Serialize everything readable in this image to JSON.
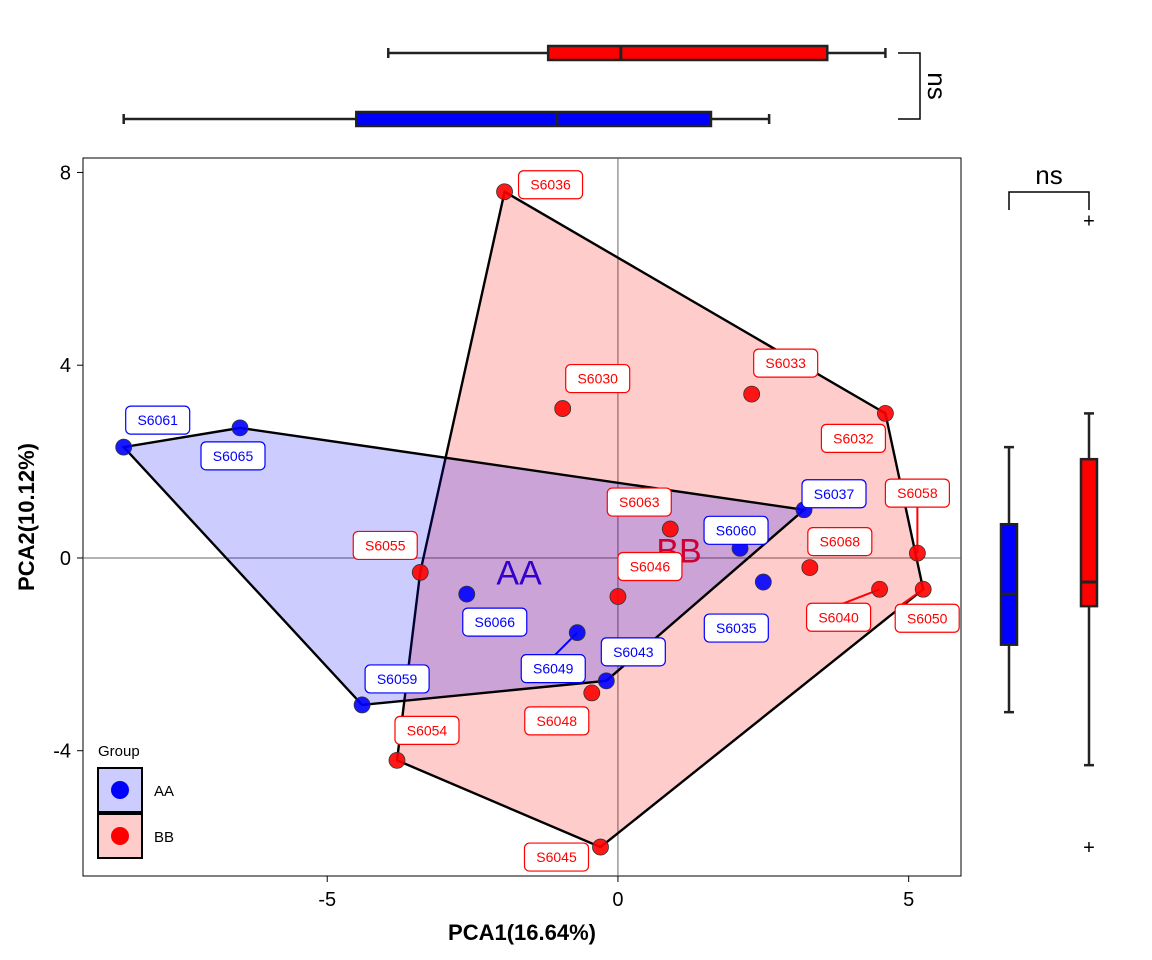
{
  "chart_data": {
    "type": "scatter",
    "xlabel": "PCA1(16.64%)",
    "ylabel": "PCA2(10.12%)",
    "xlim": [
      -9.2,
      5.9
    ],
    "ylim": [
      -6.6,
      8.3
    ],
    "x_ticks": [
      -5,
      0,
      5
    ],
    "y_ticks": [
      -4,
      0,
      4,
      8
    ],
    "x_tick_labels": [
      "-5",
      "0",
      "5"
    ],
    "y_tick_labels": [
      "-4",
      "0",
      "4",
      "8"
    ],
    "reference_lines": {
      "x": 0,
      "y": 0
    },
    "grid": false,
    "legend": {
      "title": "Group",
      "position": "bottom-left",
      "entries": [
        {
          "name": "AA",
          "color": "#0000ff",
          "fill": "#ccccff"
        },
        {
          "name": "BB",
          "color": "#ff0000",
          "fill": "#ffcccc"
        }
      ]
    },
    "series": [
      {
        "name": "AA",
        "color": "#0000ff",
        "points": [
          {
            "label": "S6061",
            "x": -8.5,
            "y": 2.3
          },
          {
            "label": "S6065",
            "x": -6.5,
            "y": 2.7
          },
          {
            "label": "S6037",
            "x": 3.2,
            "y": 1.0
          },
          {
            "label": "S6060",
            "x": 2.1,
            "y": 0.2
          },
          {
            "label": "S6035",
            "x": 2.5,
            "y": -0.5
          },
          {
            "label": "S6066",
            "x": -2.6,
            "y": -0.75
          },
          {
            "label": "S6049",
            "x": -0.7,
            "y": -1.55
          },
          {
            "label": "S6043",
            "x": -0.2,
            "y": -2.55
          },
          {
            "label": "S6059",
            "x": -4.4,
            "y": -3.05
          }
        ]
      },
      {
        "name": "BB",
        "color": "#ff0000",
        "points": [
          {
            "label": "S6036",
            "x": -1.95,
            "y": 7.6
          },
          {
            "label": "S6030",
            "x": -0.95,
            "y": 3.1
          },
          {
            "label": "S6033",
            "x": 2.3,
            "y": 3.4
          },
          {
            "label": "S6032",
            "x": 4.6,
            "y": 3.0
          },
          {
            "label": "S6058",
            "x": 5.15,
            "y": 0.1
          },
          {
            "label": "S6063",
            "x": 0.9,
            "y": 0.6
          },
          {
            "label": "S6068",
            "x": 3.3,
            "y": -0.2
          },
          {
            "label": "S6055",
            "x": -3.4,
            "y": -0.3
          },
          {
            "label": "S6046",
            "x": 0.0,
            "y": -0.8
          },
          {
            "label": "S6040",
            "x": 4.5,
            "y": -0.65
          },
          {
            "label": "S6050",
            "x": 5.25,
            "y": -0.65
          },
          {
            "label": "S6048",
            "x": -0.45,
            "y": -2.8
          },
          {
            "label": "S6054",
            "x": -3.8,
            "y": -4.2
          },
          {
            "label": "S6045",
            "x": -0.3,
            "y": -6.0
          }
        ]
      }
    ],
    "group_labels": [
      {
        "text": "AA",
        "x": -1.7,
        "y": -0.3,
        "color": "#3300cc"
      },
      {
        "text": "BB",
        "x": 1.05,
        "y": 0.15,
        "color": "#cc0033"
      }
    ],
    "hull_order": {
      "AA": [
        "S6061",
        "S6065",
        "S6037",
        "S6043",
        "S6059"
      ],
      "BB": [
        "S6036",
        "S6032",
        "S6050",
        "S6045",
        "S6054",
        "S6055"
      ]
    },
    "boxplots": {
      "x": {
        "AA": {
          "whisker_low": -8.5,
          "q1": -4.5,
          "median": -1.05,
          "q3": 1.6,
          "whisker_high": 2.6
        },
        "BB": {
          "whisker_low": -3.95,
          "q1": -1.2,
          "median": 0.05,
          "q3": 3.6,
          "whisker_high": 4.6
        }
      },
      "y": {
        "AA": {
          "whisker_low": -3.2,
          "q1": -1.8,
          "median": -0.75,
          "q3": 0.7,
          "whisker_high": 2.3
        },
        "BB": {
          "whisker_low": -4.3,
          "q1": -1.0,
          "median": -0.5,
          "q3": 2.05,
          "whisker_high": 3.0,
          "outliers": [
            7.0,
            -6.0
          ]
        }
      }
    },
    "significance": {
      "x": "ns",
      "y": "ns"
    }
  }
}
